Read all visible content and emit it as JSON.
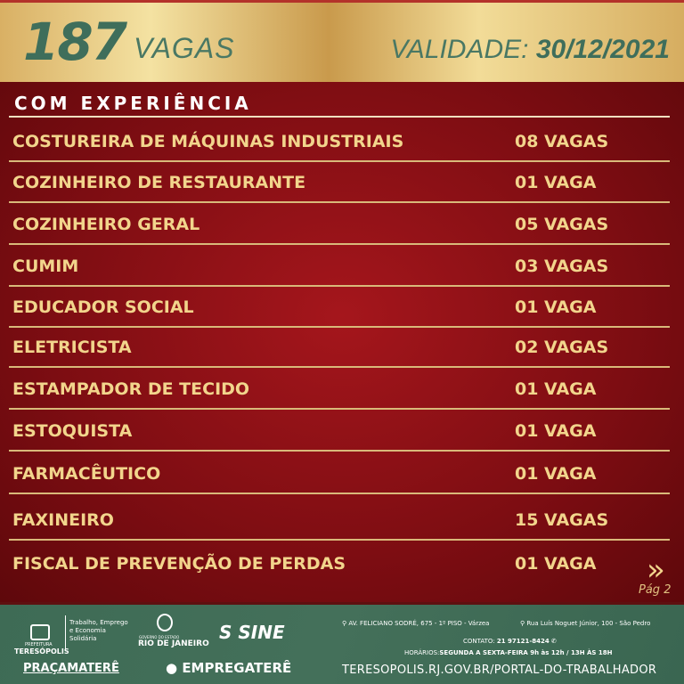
{
  "header": {
    "count": "187",
    "count_label": "VAGAS",
    "validity_label": "VALIDADE:",
    "validity_date": "30/12/2021"
  },
  "section_title": "COM EXPERIÊNCIA",
  "jobs": [
    {
      "title": "COSTUREIRA DE MÁQUINAS INDUSTRIAIS",
      "vagas": "08 VAGAS"
    },
    {
      "title": "COZINHEIRO DE RESTAURANTE",
      "vagas": "01 VAGA"
    },
    {
      "title": "COZINHEIRO GERAL",
      "vagas": "05 VAGAS"
    },
    {
      "title": "CUMIM",
      "vagas": "03 VAGAS"
    },
    {
      "title": "EDUCADOR SOCIAL",
      "vagas": "01 VAGA"
    },
    {
      "title": "ELETRICISTA",
      "vagas": "02 VAGAS"
    },
    {
      "title": "ESTAMPADOR DE TECIDO",
      "vagas": "01 VAGA"
    },
    {
      "title": "ESTOQUISTA",
      "vagas": "01 VAGA"
    },
    {
      "title": "FARMACÊUTICO",
      "vagas": "01 VAGA"
    },
    {
      "title": "FAXINEIRO",
      "vagas": "15 VAGAS"
    },
    {
      "title": "FISCAL DE PREVENÇÃO DE PERDAS",
      "vagas": "01 VAGA"
    }
  ],
  "pagination": {
    "next_icon": "double-chevron-right",
    "page": "Pág 2"
  },
  "footer": {
    "prefeitura": "PREFEITURA",
    "city": "TERESÓPOLIS",
    "secretaria": [
      "Trabalho, Emprego",
      "e Economia",
      "Solidária"
    ],
    "gov_top": "GOVERNO DO ESTADO",
    "gov": "RIO DE JANEIRO",
    "sine": "SINE",
    "pracamatere": "PRAÇAMATERÊ",
    "empregatere": "EMPREGATERÊ",
    "address1": "AV. FELICIANO SODRÉ, 675 - 1º PISO - Várzea",
    "address2": "Rua Luís Noguet Júnior, 100 - São Pedro",
    "contact_label": "CONTATO:",
    "contact": "21 97121-8424",
    "hours_label": "HORÁRIOS:",
    "hours": "SEGUNDA A SEXTA-FEIRA  9h às 12h / 13H ÀS 18H",
    "url": "TERESOPOLIS.RJ.GOV.BR/PORTAL-DO-TRABALHADOR"
  },
  "colors": {
    "gold": "#f2d58c",
    "red": "#8a0f14",
    "green": "#3f6e5b"
  }
}
